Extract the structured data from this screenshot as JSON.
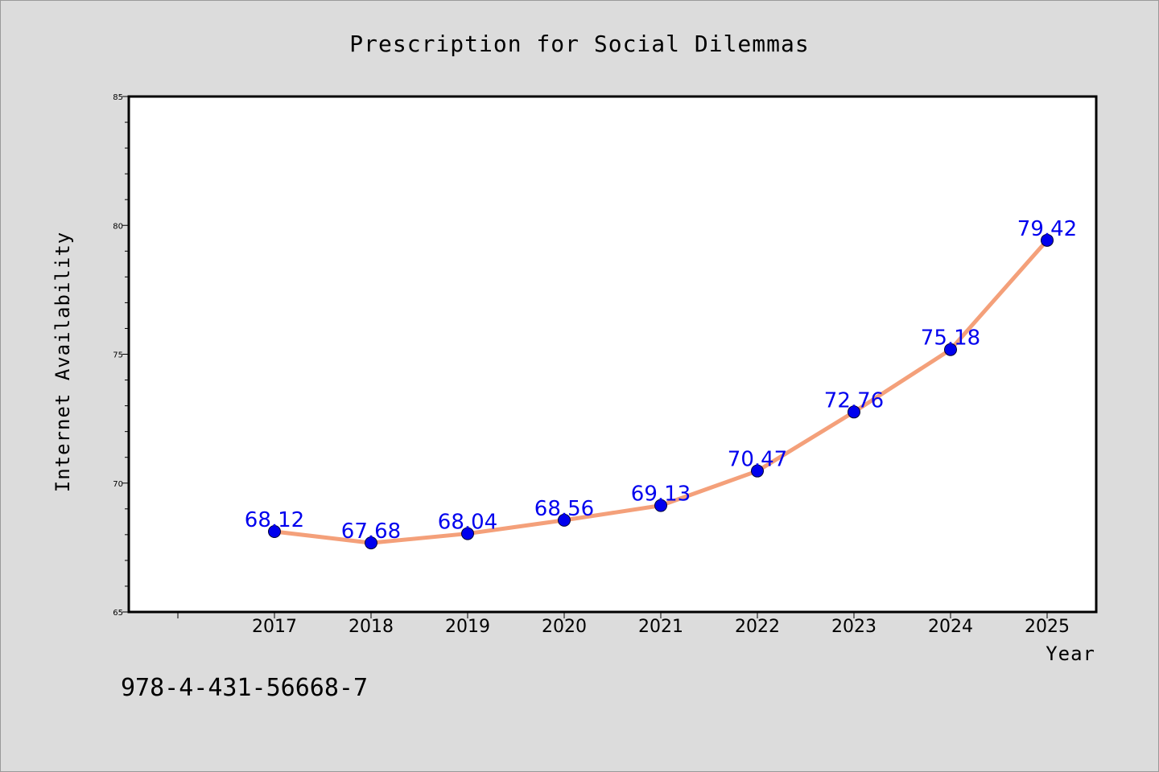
{
  "chart_data": {
    "type": "line",
    "title": "Prescription for Social Dilemmas",
    "xlabel": "Year",
    "ylabel": "Internet Availability",
    "categories": [
      "2017",
      "2018",
      "2019",
      "2020",
      "2021",
      "2022",
      "2023",
      "2024",
      "2025"
    ],
    "series": [
      {
        "values": [
          68.12,
          67.68,
          68.04,
          68.56,
          69.13,
          70.47,
          72.76,
          75.18,
          79.42
        ],
        "labels": [
          "68.12",
          "67.68",
          "68.04",
          "68.56",
          "69.13",
          "70.47",
          "72.76",
          "75.18",
          "79.42"
        ]
      }
    ],
    "ylim": [
      65,
      85
    ],
    "y_ticks": [
      "65",
      "70",
      "75",
      "80",
      "85"
    ],
    "grid": false,
    "legend": "none",
    "colors": {
      "line": "#f4a07a",
      "marker": "#0000ee",
      "data_label": "#0000ee",
      "plot_background": "#ffffff",
      "figure_background": "#dcdcdc"
    }
  },
  "annotation": {
    "isbn": "978-4-431-56668-7"
  }
}
